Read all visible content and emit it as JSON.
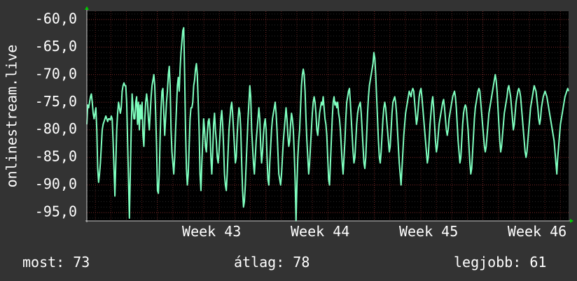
{
  "colors": {
    "background": "#333333",
    "plot_background": "#000000",
    "line": "#7fffbf",
    "grid": "#5a1f1f",
    "axis": "#cccccc",
    "arrow": "#00cc00",
    "text": "#ffffff"
  },
  "chart_data": {
    "type": "line",
    "ylabel": "onlinestream.live",
    "ylim": [
      -96.5,
      -58.5
    ],
    "yticks": [
      -60,
      -65,
      -70,
      -75,
      -80,
      -85,
      -90,
      -95
    ],
    "ytick_labels": [
      "-60,0",
      "-65,0",
      "-70,0",
      "-75,0",
      "-80,0",
      "-85,0",
      "-90,0",
      "-95,0"
    ],
    "xlim": [
      42.35,
      46.79
    ],
    "xticks": [
      43,
      44,
      45,
      46
    ],
    "xtick_labels": [
      "Week 43",
      "Week 44",
      "Week 45",
      "Week 46"
    ],
    "grid": true,
    "series": [
      {
        "values": [
          -79,
          -75.5,
          -76,
          -75,
          -74,
          -73.5,
          -75,
          -77,
          -78,
          -77,
          -76,
          -80,
          -87,
          -89.5,
          -88,
          -86,
          -83,
          -80,
          -79,
          -78.5,
          -78,
          -77.5,
          -78,
          -78.5,
          -78,
          -78,
          -78.2,
          -77.5,
          -78,
          -82,
          -87,
          -92,
          -86,
          -80,
          -77,
          -75,
          -76,
          -77,
          -76,
          -73,
          -72,
          -71.5,
          -72,
          -72,
          -75,
          -82,
          -89,
          -96,
          -88,
          -80,
          -73.5,
          -76,
          -78,
          -78,
          -75,
          -74,
          -79,
          -75,
          -80,
          -75.5,
          -78,
          -75,
          -81,
          -83,
          -78,
          -75,
          -73.5,
          -75,
          -78,
          -80,
          -77,
          -74,
          -72,
          -71,
          -70,
          -72,
          -77,
          -83,
          -91,
          -91.5,
          -88,
          -81,
          -76,
          -73,
          -72.5,
          -77,
          -81,
          -78,
          -75,
          -73,
          -70,
          -68.5,
          -72,
          -80,
          -84,
          -86,
          -88,
          -85,
          -80,
          -76,
          -72,
          -70.5,
          -73,
          -69,
          -66,
          -64,
          -62,
          -61.5,
          -70,
          -80,
          -87,
          -90,
          -88,
          -83,
          -78,
          -76,
          -76,
          -75,
          -72,
          -71,
          -69,
          -68,
          -70,
          -75,
          -80,
          -88,
          -91,
          -86,
          -82,
          -78,
          -80,
          -83,
          -84,
          -81,
          -78.5,
          -78,
          -80,
          -85,
          -88,
          -84,
          -79,
          -77,
          -80,
          -82,
          -85,
          -86,
          -84,
          -81,
          -78,
          -76.5,
          -79,
          -83,
          -88,
          -90,
          -91,
          -88,
          -84,
          -80,
          -78,
          -76,
          -75,
          -77,
          -80,
          -83,
          -86,
          -85,
          -81,
          -78,
          -76,
          -77,
          -80,
          -86,
          -91,
          -94,
          -93,
          -90,
          -86,
          -82,
          -78,
          -75,
          -72,
          -74,
          -80,
          -83,
          -86,
          -88,
          -85,
          -82,
          -80,
          -78,
          -76,
          -78,
          -83,
          -86,
          -84,
          -81,
          -79,
          -78,
          -80,
          -85,
          -89,
          -90,
          -86,
          -83,
          -80,
          -78,
          -77,
          -76,
          -75,
          -77,
          -80,
          -84,
          -88,
          -89,
          -90,
          -88,
          -85,
          -82,
          -80,
          -78,
          -76,
          -78,
          -81,
          -83,
          -82,
          -79,
          -77,
          -78,
          -80,
          -84,
          -89,
          -96.5,
          -90,
          -85,
          -82,
          -80,
          -76,
          -72,
          -70,
          -69,
          -70,
          -73,
          -78,
          -82,
          -85,
          -88,
          -86,
          -83,
          -80,
          -77,
          -75,
          -74,
          -75,
          -77,
          -80,
          -81,
          -79,
          -77,
          -76,
          -75,
          -75.5,
          -74,
          -76,
          -78,
          -79,
          -81,
          -85,
          -89,
          -90,
          -86,
          -82,
          -78,
          -75,
          -74,
          -75.5,
          -75,
          -76,
          -75,
          -77,
          -78,
          -80,
          -83,
          -86,
          -88,
          -85,
          -82,
          -78,
          -75,
          -74,
          -73,
          -72.5,
          -75,
          -78,
          -81,
          -84,
          -86,
          -85,
          -82,
          -79,
          -77,
          -76,
          -75.5,
          -75,
          -77,
          -80,
          -83,
          -86,
          -87,
          -85,
          -81,
          -77,
          -74,
          -72,
          -71,
          -70,
          -69,
          -68,
          -66,
          -67,
          -70,
          -74,
          -78,
          -82,
          -85,
          -86,
          -84,
          -81,
          -78,
          -76,
          -75,
          -76,
          -78,
          -80,
          -82,
          -84,
          -83,
          -80,
          -77,
          -75,
          -74.5,
          -74,
          -75,
          -77,
          -80,
          -83,
          -86,
          -88,
          -90,
          -87,
          -84,
          -81,
          -79,
          -77,
          -76,
          -75,
          -74,
          -73,
          -73.5,
          -74,
          -73,
          -72.5,
          -73,
          -75,
          -77,
          -79,
          -78,
          -76,
          -74,
          -73,
          -72.5,
          -74,
          -76,
          -78,
          -80,
          -82,
          -84,
          -86,
          -85,
          -82,
          -79,
          -77,
          -75,
          -74,
          -76,
          -79,
          -82,
          -84,
          -83,
          -81,
          -79,
          -78,
          -77,
          -76,
          -75,
          -74.5,
          -76,
          -78,
          -80,
          -81,
          -80,
          -78,
          -77,
          -76,
          -75,
          -74,
          -73.5,
          -73,
          -74,
          -76,
          -79,
          -82,
          -84,
          -86,
          -85,
          -82,
          -79,
          -77,
          -76,
          -75.5,
          -76,
          -78,
          -80,
          -83,
          -86,
          -88,
          -87,
          -84,
          -81,
          -78,
          -76,
          -75,
          -74,
          -73,
          -72.5,
          -73,
          -75,
          -77,
          -79,
          -81,
          -83,
          -84,
          -83,
          -81,
          -79,
          -77,
          -76,
          -75,
          -74,
          -73,
          -72,
          -71,
          -70,
          -71,
          -73,
          -76,
          -79,
          -82,
          -84,
          -83,
          -81,
          -79,
          -77,
          -76,
          -75,
          -74,
          -72.5,
          -72,
          -73,
          -74,
          -76,
          -78,
          -80,
          -79,
          -77,
          -75,
          -74,
          -73,
          -72.5,
          -73,
          -74,
          -76,
          -78,
          -80,
          -82,
          -84,
          -85,
          -84,
          -82,
          -80,
          -78,
          -76,
          -75,
          -74,
          -73,
          -72,
          -72.5,
          -73,
          -74.5,
          -76,
          -78,
          -79,
          -78,
          -76,
          -75,
          -74,
          -73.5,
          -73,
          -73.5,
          -74,
          -75,
          -76,
          -77,
          -78,
          -79,
          -80,
          -81,
          -82,
          -84,
          -86,
          -88,
          -85,
          -83,
          -81,
          -79,
          -78,
          -77,
          -76,
          -75,
          -74,
          -73.5,
          -73,
          -72.5,
          -73
        ],
        "color": "#7fffbf"
      }
    ]
  },
  "stats": {
    "now": "most: 73",
    "avg": "átlag: 78",
    "best": "legjobb: 61"
  }
}
